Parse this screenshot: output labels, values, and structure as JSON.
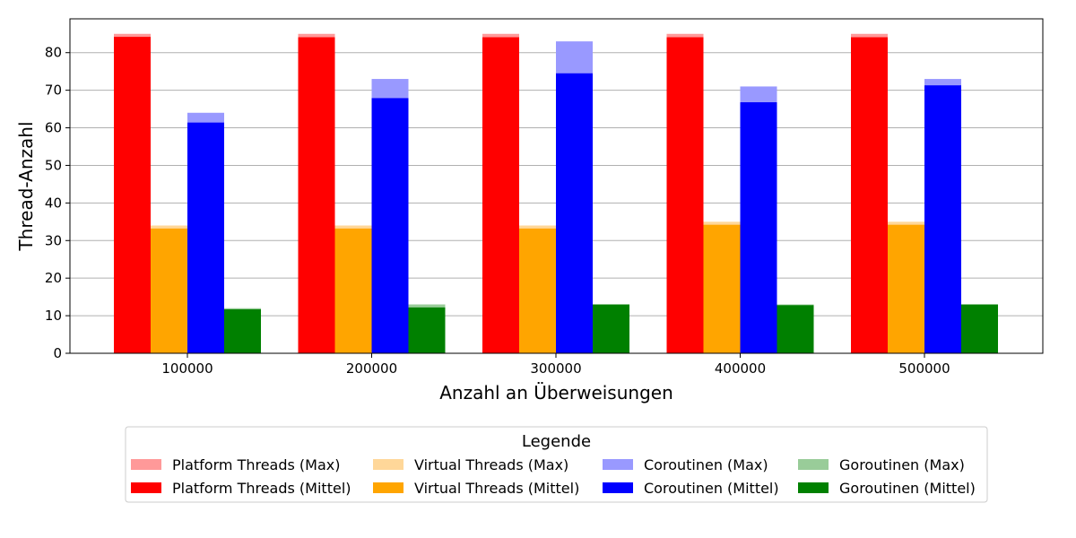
{
  "chart_data": {
    "type": "bar",
    "categories": [
      "100000",
      "200000",
      "300000",
      "400000",
      "500000"
    ],
    "xlabel": "Anzahl an Überweisungen",
    "ylabel": "Thread-Anzahl",
    "ylim": [
      0,
      89
    ],
    "yticks": [
      0,
      10,
      20,
      30,
      40,
      50,
      60,
      70,
      80
    ],
    "grid": "horizontal",
    "legend_title": "Legende",
    "legend_position": "bottom",
    "series": [
      {
        "name": "Platform Threads (Max)",
        "group": "Platform Threads",
        "kind": "max",
        "color": "#ff9999",
        "values": [
          85,
          85,
          85,
          85,
          85
        ]
      },
      {
        "name": "Platform Threads (Mittel)",
        "group": "Platform Threads",
        "kind": "mean",
        "color": "#ff0000",
        "values": [
          84.2,
          84.1,
          84.1,
          84.1,
          84.1
        ]
      },
      {
        "name": "Virtual Threads (Max)",
        "group": "Virtual Threads",
        "kind": "max",
        "color": "#ffd799",
        "values": [
          34,
          34,
          34,
          35,
          35
        ]
      },
      {
        "name": "Virtual Threads (Mittel)",
        "group": "Virtual Threads",
        "kind": "mean",
        "color": "#ffa500",
        "values": [
          33.2,
          33.2,
          33.2,
          34.2,
          34.2
        ]
      },
      {
        "name": "Coroutinen (Max)",
        "group": "Coroutinen",
        "kind": "max",
        "color": "#9999ff",
        "values": [
          64,
          73,
          83,
          71,
          73
        ]
      },
      {
        "name": "Coroutinen (Mittel)",
        "group": "Coroutinen",
        "kind": "mean",
        "color": "#0000ff",
        "values": [
          61.4,
          67.9,
          74.5,
          66.8,
          71.3
        ]
      },
      {
        "name": "Goroutinen (Max)",
        "group": "Goroutinen",
        "kind": "max",
        "color": "#99cc99",
        "values": [
          12,
          13,
          13,
          13,
          13
        ]
      },
      {
        "name": "Goroutinen (Mittel)",
        "group": "Goroutinen",
        "kind": "mean",
        "color": "#008000",
        "values": [
          11.7,
          12.2,
          13.0,
          12.8,
          13.0
        ]
      }
    ]
  }
}
